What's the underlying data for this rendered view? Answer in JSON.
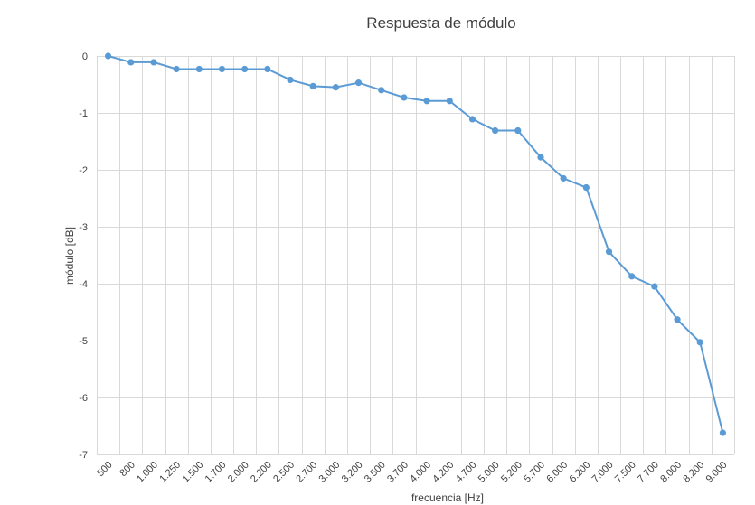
{
  "chart_data": {
    "type": "line",
    "title": "Respuesta de módulo",
    "xlabel": "frecuencia [Hz]",
    "ylabel": "módulo [dB]",
    "ylim": [
      -7,
      0
    ],
    "yticks": [
      "0",
      "-1",
      "-2",
      "-3",
      "-4",
      "-5",
      "-6",
      "-7"
    ],
    "grid": true,
    "legend": "none",
    "color": "#5b9bd5",
    "categories": [
      "500",
      "800",
      "1.000",
      "1.250",
      "1.500",
      "1.700",
      "2.000",
      "2.200",
      "2.500",
      "2.700",
      "3.000",
      "3.200",
      "3.500",
      "3.700",
      "4.000",
      "4.200",
      "4.700",
      "5.000",
      "5.200",
      "5.700",
      "6.000",
      "6.200",
      "7.000",
      "7.500",
      "7.700",
      "8.000",
      "8.200",
      "9.000"
    ],
    "values": [
      0,
      -0.11,
      -0.11,
      -0.23,
      -0.23,
      -0.23,
      -0.23,
      -0.23,
      -0.42,
      -0.53,
      -0.55,
      -0.47,
      -0.6,
      -0.73,
      -0.79,
      -0.79,
      -1.11,
      -1.31,
      -1.31,
      -1.78,
      -2.15,
      -2.31,
      -3.44,
      -3.87,
      -4.05,
      -4.63,
      -5.03,
      -6.62
    ]
  }
}
